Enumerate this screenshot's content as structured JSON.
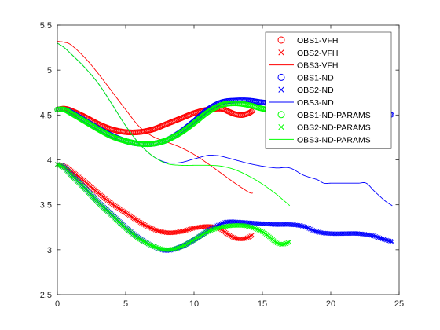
{
  "chart_data": {
    "type": "line",
    "title": "",
    "xlabel": "",
    "ylabel": "",
    "xlim": [
      0,
      25
    ],
    "ylim": [
      2.5,
      5.5
    ],
    "xticks": [
      "0",
      "5",
      "10",
      "15",
      "20",
      "25"
    ],
    "yticks": [
      "2.5",
      "3",
      "3.5",
      "4",
      "4.5",
      "5",
      "5.5"
    ],
    "grid": false,
    "legend_position": "top-right",
    "series": [
      {
        "name": "OBS1-VFH",
        "color": "#ff0000",
        "style": "circle",
        "points": [
          [
            0,
            4.56
          ],
          [
            0.5,
            4.57
          ],
          [
            1,
            4.55
          ],
          [
            2,
            4.48
          ],
          [
            3,
            4.4
          ],
          [
            4,
            4.34
          ],
          [
            5,
            4.31
          ],
          [
            6,
            4.31
          ],
          [
            7,
            4.34
          ],
          [
            8,
            4.4
          ],
          [
            9,
            4.46
          ],
          [
            10,
            4.52
          ],
          [
            11,
            4.56
          ],
          [
            12,
            4.57
          ],
          [
            12.5,
            4.54
          ],
          [
            13,
            4.51
          ],
          [
            13.5,
            4.5
          ],
          [
            14,
            4.52
          ],
          [
            14.3,
            4.55
          ]
        ]
      },
      {
        "name": "OBS2-VFH",
        "color": "#ff0000",
        "style": "x",
        "points": [
          [
            0,
            3.95
          ],
          [
            0.5,
            3.93
          ],
          [
            1,
            3.88
          ],
          [
            2,
            3.76
          ],
          [
            3,
            3.63
          ],
          [
            4,
            3.51
          ],
          [
            5,
            3.41
          ],
          [
            6,
            3.31
          ],
          [
            7,
            3.23
          ],
          [
            8,
            3.19
          ],
          [
            9,
            3.2
          ],
          [
            10,
            3.24
          ],
          [
            11,
            3.26
          ],
          [
            11.8,
            3.24
          ],
          [
            12.5,
            3.17
          ],
          [
            13,
            3.13
          ],
          [
            13.5,
            3.12
          ],
          [
            14,
            3.14
          ],
          [
            14.3,
            3.17
          ]
        ]
      },
      {
        "name": "OBS3-VFH",
        "color": "#ff0000",
        "style": "line",
        "points": [
          [
            0,
            5.32
          ],
          [
            0.5,
            5.31
          ],
          [
            1,
            5.28
          ],
          [
            2,
            5.14
          ],
          [
            3,
            4.96
          ],
          [
            4,
            4.76
          ],
          [
            5,
            4.56
          ],
          [
            6,
            4.37
          ],
          [
            7,
            4.26
          ],
          [
            8,
            4.2
          ],
          [
            9,
            4.14
          ],
          [
            10,
            4.06
          ],
          [
            11,
            3.96
          ],
          [
            12,
            3.85
          ],
          [
            13,
            3.74
          ],
          [
            14,
            3.64
          ],
          [
            14.3,
            3.63
          ]
        ]
      },
      {
        "name": "OBS1-ND",
        "color": "#0000ff",
        "style": "circle",
        "points": [
          [
            0,
            4.56
          ],
          [
            0.5,
            4.56
          ],
          [
            1,
            4.53
          ],
          [
            2,
            4.44
          ],
          [
            3,
            4.35
          ],
          [
            4,
            4.27
          ],
          [
            5,
            4.21
          ],
          [
            6,
            4.18
          ],
          [
            7,
            4.18
          ],
          [
            8,
            4.22
          ],
          [
            9,
            4.31
          ],
          [
            10,
            4.43
          ],
          [
            11,
            4.56
          ],
          [
            12,
            4.64
          ],
          [
            13,
            4.66
          ],
          [
            14,
            4.66
          ],
          [
            15,
            4.64
          ],
          [
            16,
            4.63
          ],
          [
            17,
            4.62
          ],
          [
            18,
            4.61
          ],
          [
            19,
            4.6
          ],
          [
            20,
            4.6
          ],
          [
            21,
            4.59
          ],
          [
            22,
            4.58
          ],
          [
            23,
            4.56
          ],
          [
            24,
            4.52
          ],
          [
            24.5,
            4.5
          ]
        ]
      },
      {
        "name": "OBS2-ND",
        "color": "#0000ff",
        "style": "x",
        "points": [
          [
            0,
            3.95
          ],
          [
            0.5,
            3.92
          ],
          [
            1,
            3.84
          ],
          [
            2,
            3.69
          ],
          [
            3,
            3.53
          ],
          [
            4,
            3.39
          ],
          [
            5,
            3.25
          ],
          [
            6,
            3.13
          ],
          [
            7,
            3.04
          ],
          [
            8,
            2.99
          ],
          [
            9,
            3.03
          ],
          [
            10,
            3.11
          ],
          [
            11,
            3.21
          ],
          [
            12,
            3.29
          ],
          [
            12.5,
            3.31
          ],
          [
            13,
            3.31
          ],
          [
            14,
            3.3
          ],
          [
            15,
            3.29
          ],
          [
            16,
            3.28
          ],
          [
            17,
            3.28
          ],
          [
            18,
            3.26
          ],
          [
            19,
            3.2
          ],
          [
            20,
            3.18
          ],
          [
            21,
            3.18
          ],
          [
            22,
            3.18
          ],
          [
            23,
            3.16
          ],
          [
            23.8,
            3.12
          ],
          [
            24.5,
            3.09
          ]
        ]
      },
      {
        "name": "OBS3-ND",
        "color": "#0000ff",
        "style": "line",
        "points": [
          [
            0,
            5.3
          ],
          [
            0.5,
            5.25
          ],
          [
            1,
            5.18
          ],
          [
            2,
            5.03
          ],
          [
            3,
            4.85
          ],
          [
            4,
            4.62
          ],
          [
            5,
            4.38
          ],
          [
            6,
            4.18
          ],
          [
            7,
            4.04
          ],
          [
            8,
            3.97
          ],
          [
            9,
            3.97
          ],
          [
            10,
            4.01
          ],
          [
            11,
            4.05
          ],
          [
            11.5,
            4.05
          ],
          [
            12,
            4.04
          ],
          [
            13,
            4.0
          ],
          [
            14,
            3.96
          ],
          [
            15,
            3.93
          ],
          [
            16,
            3.91
          ],
          [
            17,
            3.91
          ],
          [
            18,
            3.83
          ],
          [
            19,
            3.78
          ],
          [
            19.5,
            3.74
          ],
          [
            20,
            3.74
          ],
          [
            21,
            3.74
          ],
          [
            22,
            3.74
          ],
          [
            22.6,
            3.74
          ],
          [
            23.2,
            3.65
          ],
          [
            24,
            3.54
          ],
          [
            24.5,
            3.49
          ]
        ]
      },
      {
        "name": "OBS1-ND-PARAMS",
        "color": "#00ff00",
        "style": "circle",
        "points": [
          [
            0,
            4.56
          ],
          [
            0.5,
            4.56
          ],
          [
            1,
            4.52
          ],
          [
            2,
            4.43
          ],
          [
            3,
            4.34
          ],
          [
            4,
            4.26
          ],
          [
            5,
            4.21
          ],
          [
            6,
            4.18
          ],
          [
            7,
            4.18
          ],
          [
            8,
            4.22
          ],
          [
            9,
            4.3
          ],
          [
            10,
            4.41
          ],
          [
            11,
            4.53
          ],
          [
            12,
            4.61
          ],
          [
            13,
            4.63
          ],
          [
            14,
            4.61
          ],
          [
            15,
            4.57
          ],
          [
            16,
            4.54
          ],
          [
            16.6,
            4.53
          ]
        ]
      },
      {
        "name": "OBS2-ND-PARAMS",
        "color": "#00ff00",
        "style": "x",
        "points": [
          [
            0,
            3.95
          ],
          [
            0.5,
            3.91
          ],
          [
            1,
            3.83
          ],
          [
            2,
            3.68
          ],
          [
            3,
            3.52
          ],
          [
            4,
            3.38
          ],
          [
            5,
            3.24
          ],
          [
            6,
            3.12
          ],
          [
            7,
            3.04
          ],
          [
            8,
            3.0
          ],
          [
            9,
            3.03
          ],
          [
            10,
            3.11
          ],
          [
            11,
            3.2
          ],
          [
            12,
            3.25
          ],
          [
            13,
            3.27
          ],
          [
            14,
            3.26
          ],
          [
            15,
            3.2
          ],
          [
            15.7,
            3.12
          ],
          [
            16,
            3.08
          ],
          [
            16.5,
            3.06
          ],
          [
            17,
            3.09
          ]
        ]
      },
      {
        "name": "OBS3-ND-PARAMS",
        "color": "#00ff00",
        "style": "line",
        "points": [
          [
            0,
            5.3
          ],
          [
            0.5,
            5.25
          ],
          [
            1,
            5.18
          ],
          [
            2,
            5.03
          ],
          [
            3,
            4.85
          ],
          [
            4,
            4.62
          ],
          [
            5,
            4.38
          ],
          [
            6,
            4.18
          ],
          [
            7,
            4.04
          ],
          [
            8,
            3.96
          ],
          [
            9,
            3.94
          ],
          [
            10,
            3.94
          ],
          [
            11,
            3.94
          ],
          [
            12,
            3.93
          ],
          [
            13,
            3.89
          ],
          [
            14,
            3.82
          ],
          [
            15,
            3.73
          ],
          [
            16,
            3.62
          ],
          [
            17,
            3.49
          ]
        ]
      }
    ]
  }
}
